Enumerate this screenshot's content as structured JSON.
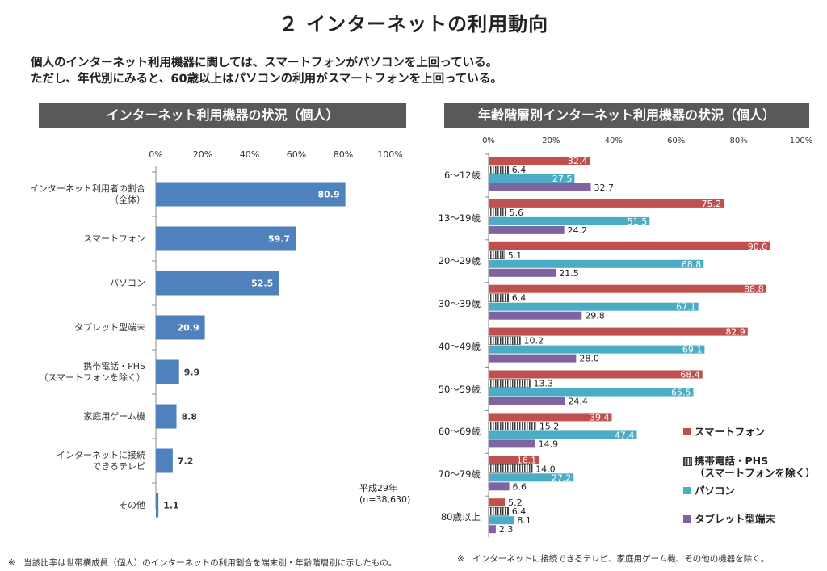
{
  "page": {
    "title": "２ インターネットの利用動向",
    "intro_line1": "個人のインターネット利用機器に関しては、スマートフォンがパソコンを上回っている。",
    "intro_line2": "ただし、年代別にみると、60歳以上はパソコンの利用がスマートフォンを上回っている。",
    "left_note": "※　当該比率は世帯構成員（個人）のインターネットの利用割合を端末別・年齢階層別に示したもの。",
    "right_note": "※　インターネットに接続できるテレビ、家庭用ゲーム機、その他の機器を除く。"
  },
  "chart_data": [
    {
      "type": "bar",
      "title": "インターネット利用機器の状況（個人）",
      "orientation": "horizontal",
      "categories": [
        "インターネット利用者の割合\n（全体）",
        "スマートフォン",
        "パソコン",
        "タブレット型端末",
        "携帯電話・PHS\n（スマートフォンを除く）",
        "家庭用ゲーム機",
        "インターネットに接続\nできるテレビ",
        "その他"
      ],
      "values": [
        80.9,
        59.7,
        52.5,
        20.9,
        9.9,
        8.8,
        7.2,
        1.1
      ],
      "value_labels": [
        "80.9",
        "59.7",
        "52.5",
        "20.9",
        "9.9",
        "8.8",
        "7.2",
        "1.1"
      ],
      "xlim": [
        0,
        100
      ],
      "ticks": [
        "0%",
        "20%",
        "40%",
        "60%",
        "80%",
        "100%"
      ],
      "annotation": "平成29年\n(n=38,630)",
      "color": "#4F81BD"
    },
    {
      "type": "bar",
      "title": "年齢階層別インターネット利用機器の状況（個人）",
      "orientation": "horizontal",
      "categories": [
        "6～12歳",
        "13～19歳",
        "20～29歳",
        "30～39歳",
        "40～49歳",
        "50～59歳",
        "60～69歳",
        "70～79歳",
        "80歳以上"
      ],
      "xlim": [
        0,
        100
      ],
      "ticks": [
        "0%",
        "20%",
        "40%",
        "60%",
        "80%",
        "100%"
      ],
      "series": [
        {
          "name": "スマートフォン",
          "values": [
            32.4,
            75.2,
            90.0,
            88.8,
            82.9,
            68.4,
            39.4,
            16.1,
            5.2
          ],
          "labels": [
            "32.4",
            "75.2",
            "90.0",
            "88.8",
            "82.9",
            "68.4",
            "39.4",
            "16.1",
            "5.2"
          ],
          "color": "#C0504D"
        },
        {
          "name": "携帯電話・PHS\n（スマートフォンを除く）",
          "values": [
            6.4,
            5.6,
            5.1,
            6.4,
            10.2,
            13.3,
            15.2,
            14.0,
            6.4
          ],
          "labels": [
            "6.4",
            "5.6",
            "5.1",
            "6.4",
            "10.2",
            "13.3",
            "15.2",
            "14.0",
            "6.4"
          ],
          "color": "#404040"
        },
        {
          "name": "パソコン",
          "values": [
            27.5,
            51.5,
            68.8,
            67.1,
            69.1,
            65.5,
            47.4,
            27.2,
            8.1
          ],
          "labels": [
            "27.5",
            "51.5",
            "68.8",
            "67.1",
            "69.1",
            "65.5",
            "47.4",
            "27.2",
            "8.1"
          ],
          "color": "#4BACC6"
        },
        {
          "name": "タブレット型端末",
          "values": [
            32.7,
            24.2,
            21.5,
            29.8,
            28.0,
            24.4,
            14.9,
            6.6,
            2.3
          ],
          "labels": [
            "32.7",
            "24.2",
            "21.5",
            "29.8",
            "28.0",
            "24.4",
            "14.9",
            "6.6",
            "2.3"
          ],
          "color": "#8064A2"
        }
      ],
      "legend_position": "right"
    }
  ]
}
